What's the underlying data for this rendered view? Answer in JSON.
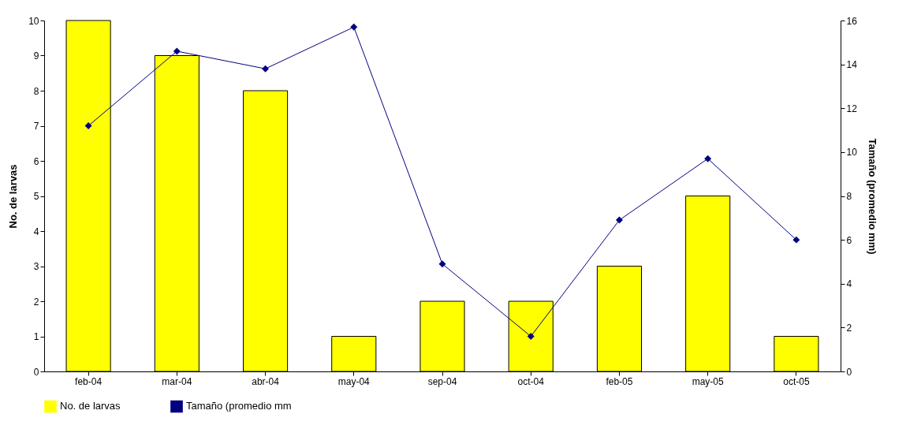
{
  "chart_data": {
    "type": "bar",
    "categories": [
      "feb-04",
      "mar-04",
      "abr-04",
      "may-04",
      "sep-04",
      "oct-04",
      "feb-05",
      "may-05",
      "oct-05"
    ],
    "ylabel": "No. de larvas",
    "y2label": "Tamaño (promedio mm)",
    "ylim": [
      0,
      10
    ],
    "yticks": [
      0,
      1,
      2,
      3,
      4,
      5,
      6,
      7,
      8,
      9,
      10
    ],
    "y2lim": [
      0,
      16
    ],
    "y2ticks": [
      0,
      2,
      4,
      6,
      8,
      10,
      12,
      14,
      16
    ],
    "grid": false,
    "legend": "bottom",
    "marker": "diamond",
    "line_style": "solid",
    "series": [
      {
        "name": "No. de larvas",
        "color": "#ffff00",
        "values": [
          10,
          9,
          8,
          1,
          2,
          2,
          3,
          5,
          1
        ]
      },
      {
        "name": "Tamaño (promedio mm",
        "type": "line",
        "axis": "y2",
        "color": "#000080",
        "values": [
          11.2,
          14.6,
          13.8,
          15.7,
          4.9,
          1.6,
          6.9,
          9.7,
          6.0
        ]
      }
    ]
  }
}
